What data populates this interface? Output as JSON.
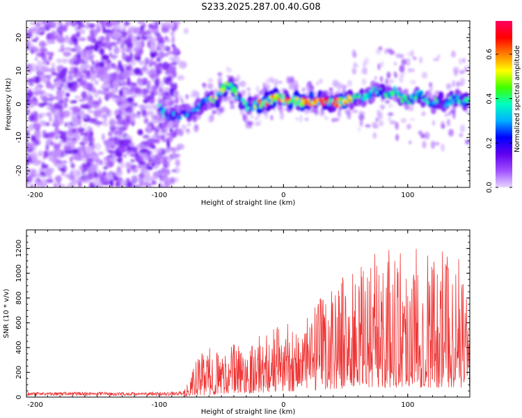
{
  "title": "S233.2025.287.00.40.G08",
  "chart_data": [
    {
      "type": "heatmap",
      "xlabel": "Height of straight line (km)",
      "ylabel": "Frequency (Hz)",
      "xlim": [
        -207,
        150
      ],
      "ylim": [
        -25,
        25
      ],
      "xticks": [
        -200,
        -100,
        0,
        100
      ],
      "yticks": [
        -20,
        -10,
        0,
        10,
        20
      ],
      "colorbar": {
        "label": "Normalized spectral amplitude",
        "range": [
          0.0,
          0.75
        ],
        "ticks": [
          0.0,
          0.2,
          0.4,
          0.6
        ],
        "colormap": [
          "#e8d8ff",
          "#a050ff",
          "#6000ee",
          "#0000ff",
          "#00b0ff",
          "#00ffc0",
          "#40ff00",
          "#ffff00",
          "#ff8000",
          "#ff0000",
          "#ff0060"
        ]
      },
      "ridge": {
        "description_free": true,
        "points": [
          [
            -100,
            -1
          ],
          [
            -95,
            -3
          ],
          [
            -90,
            -3.5
          ],
          [
            -85,
            -3.5
          ],
          [
            -80,
            -2.5
          ],
          [
            -75,
            -3
          ],
          [
            -70,
            -1.5
          ],
          [
            -65,
            0.5
          ],
          [
            -60,
            1.5
          ],
          [
            -55,
            0.5
          ],
          [
            -50,
            4
          ],
          [
            -45,
            6
          ],
          [
            -40,
            4
          ],
          [
            -35,
            1.5
          ],
          [
            -30,
            -0.5
          ],
          [
            -25,
            -1
          ],
          [
            -20,
            0
          ],
          [
            -15,
            0.5
          ],
          [
            -10,
            1.5
          ],
          [
            -5,
            2
          ],
          [
            0,
            1.5
          ],
          [
            5,
            1.5
          ],
          [
            10,
            1
          ],
          [
            15,
            0.5
          ],
          [
            20,
            1
          ],
          [
            25,
            0.5
          ],
          [
            30,
            1
          ],
          [
            35,
            0.5
          ],
          [
            40,
            0.5
          ],
          [
            45,
            0.5
          ],
          [
            50,
            1
          ],
          [
            55,
            1.5
          ],
          [
            60,
            2
          ],
          [
            65,
            2
          ],
          [
            70,
            3
          ],
          [
            75,
            4
          ],
          [
            80,
            3
          ],
          [
            85,
            3
          ],
          [
            90,
            4
          ],
          [
            95,
            2
          ],
          [
            100,
            1
          ],
          [
            105,
            2
          ],
          [
            110,
            3
          ],
          [
            115,
            1
          ],
          [
            120,
            0
          ],
          [
            125,
            1
          ],
          [
            130,
            0
          ],
          [
            135,
            1
          ],
          [
            140,
            2
          ],
          [
            145,
            0
          ],
          [
            150,
            1
          ]
        ]
      }
    },
    {
      "type": "line",
      "color": "#ee3333",
      "xlabel": "Height of straight line (km)",
      "ylabel": "SNR (10 * v/v)",
      "xlim": [
        -207,
        150
      ],
      "ylim": [
        0,
        1350
      ],
      "xticks": [
        -200,
        -100,
        0,
        100
      ],
      "yticks": [
        0,
        200,
        400,
        600,
        800,
        1000,
        1200
      ],
      "envelope": {
        "x": [
          -207,
          -100,
          -80,
          -75,
          -70,
          -60,
          -50,
          -40,
          -30,
          -20,
          -10,
          0,
          10,
          20,
          30,
          40,
          50,
          60,
          70,
          80,
          90,
          100,
          110,
          120,
          130,
          140,
          150
        ],
        "base": [
          20,
          20,
          20,
          40,
          60,
          80,
          120,
          150,
          150,
          170,
          200,
          220,
          230,
          250,
          300,
          330,
          350,
          350,
          380,
          380,
          390,
          380,
          390,
          380,
          380,
          380,
          380
        ],
        "peak": [
          40,
          40,
          50,
          160,
          320,
          400,
          370,
          450,
          420,
          500,
          560,
          620,
          620,
          650,
          800,
          950,
          1000,
          1000,
          1200,
          1150,
          1250,
          1250,
          1250,
          1200,
          1200,
          1150,
          1000
        ]
      },
      "samples": 1200
    }
  ]
}
